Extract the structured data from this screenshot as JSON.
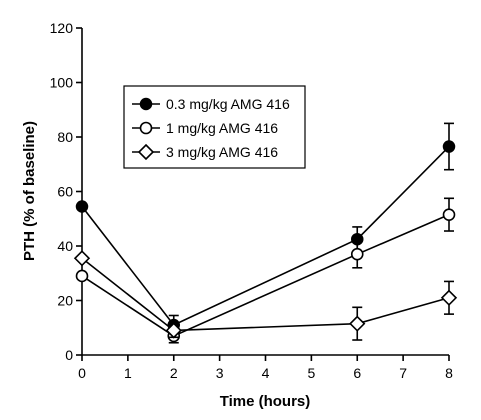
{
  "chart_data": {
    "type": "line",
    "title": "",
    "xlabel": "Time (hours)",
    "ylabel": "PTH (% of baseline)",
    "xlim": [
      0,
      8
    ],
    "ylim": [
      0,
      120
    ],
    "x_ticks": [
      0,
      1,
      2,
      3,
      4,
      5,
      6,
      7,
      8
    ],
    "y_ticks": [
      0,
      20,
      40,
      60,
      80,
      100,
      120
    ],
    "grid": false,
    "legend_position": "upper-left",
    "series": [
      {
        "name": "0.3 mg/kg AMG 416",
        "marker": "filled-circle",
        "color": "#000000",
        "points": [
          {
            "x": 0,
            "y": 54.5,
            "err": 0
          },
          {
            "x": 2,
            "y": 11,
            "err": 3.5
          },
          {
            "x": 6,
            "y": 42.5,
            "err": 4.5
          },
          {
            "x": 8,
            "y": 76.5,
            "err": 8.5
          }
        ]
      },
      {
        "name": "1 mg/kg AMG 416",
        "marker": "open-circle",
        "color": "#000000",
        "points": [
          {
            "x": 0,
            "y": 29,
            "err": 0
          },
          {
            "x": 2,
            "y": 7,
            "err": 2.5
          },
          {
            "x": 6,
            "y": 37,
            "err": 5
          },
          {
            "x": 8,
            "y": 51.5,
            "err": 6
          }
        ]
      },
      {
        "name": "3 mg/kg AMG 416",
        "marker": "open-diamond",
        "color": "#000000",
        "points": [
          {
            "x": 0,
            "y": 35.5,
            "err": 0
          },
          {
            "x": 2,
            "y": 9,
            "err": 2.5
          },
          {
            "x": 6,
            "y": 11.5,
            "err": 6
          },
          {
            "x": 8,
            "y": 21,
            "err": 6
          }
        ]
      }
    ]
  }
}
